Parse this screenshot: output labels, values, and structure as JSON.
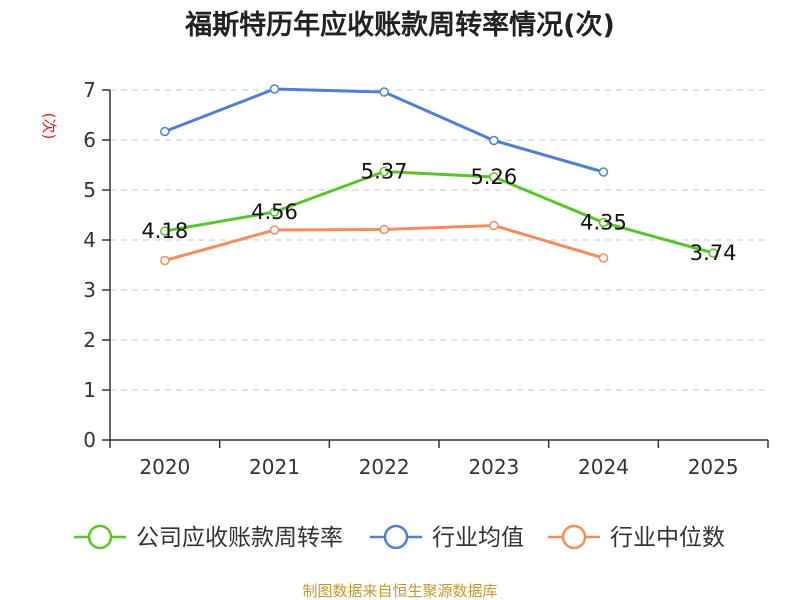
{
  "chart_data": {
    "type": "line",
    "title": "福斯特历年应收账款周转率情况(次)",
    "ylabel": "(次)",
    "xlabel": "",
    "categories": [
      "2020",
      "2021",
      "2022",
      "2023",
      "2024",
      "2025"
    ],
    "ylim": [
      0,
      7
    ],
    "yticks": [
      0,
      1,
      2,
      3,
      4,
      5,
      6,
      7
    ],
    "grid": true,
    "legend_position": "bottom",
    "series": [
      {
        "name": "公司应收账款周转率",
        "color": "#5cc42a",
        "values": [
          4.18,
          4.56,
          5.37,
          5.26,
          4.35,
          3.74
        ],
        "labels": [
          "4.18",
          "4.56",
          "5.37",
          "5.26",
          "4.35",
          "3.74"
        ]
      },
      {
        "name": "行业均值",
        "color": "#4e7fd9",
        "values": [
          6.17,
          7.02,
          6.96,
          5.99,
          5.36,
          null
        ]
      },
      {
        "name": "行业中位数",
        "color": "#f58c5b",
        "values": [
          3.59,
          4.2,
          4.21,
          4.29,
          3.64,
          null
        ]
      }
    ]
  },
  "source": "制图数据来自恒生聚源数据库"
}
